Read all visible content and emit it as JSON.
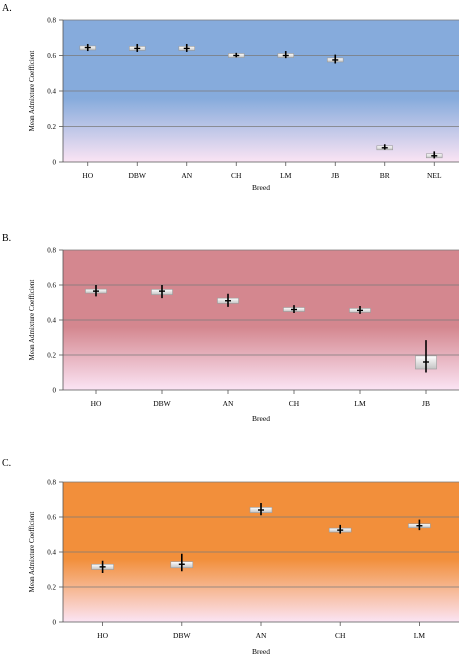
{
  "chart_data": [
    {
      "panel_label": "A.",
      "type": "box",
      "xlabel": "Breed",
      "ylabel": "Mean Admixture Coefficient",
      "ylim": [
        0,
        0.8
      ],
      "yticks": [
        "0",
        "0.2",
        "0.4",
        "0.6",
        "0.8"
      ],
      "grid": true,
      "background": {
        "top": "#86abdc",
        "bottom": "#fbe4f4"
      },
      "categories": [
        "HO",
        "DBW",
        "AN",
        "CH",
        "LM",
        "JB",
        "BR",
        "NEL"
      ],
      "series": [
        {
          "median": [
            0.645,
            0.64,
            0.64,
            0.6,
            0.6,
            0.575,
            0.08,
            0.035
          ],
          "q1": [
            0.635,
            0.63,
            0.63,
            0.595,
            0.59,
            0.565,
            0.075,
            0.03
          ],
          "q3": [
            0.65,
            0.65,
            0.65,
            0.605,
            0.61,
            0.585,
            0.085,
            0.04
          ],
          "whisker_low": [
            0.625,
            0.62,
            0.62,
            0.59,
            0.585,
            0.555,
            0.07,
            0.02
          ],
          "whisker_high": [
            0.665,
            0.665,
            0.665,
            0.615,
            0.625,
            0.605,
            0.1,
            0.06
          ]
        }
      ]
    },
    {
      "panel_label": "B.",
      "type": "box",
      "xlabel": "Breed",
      "ylabel": "Mean Admixture Coefficient",
      "ylim": [
        0,
        0.8
      ],
      "yticks": [
        "0",
        "0.2",
        "0.4",
        "0.6",
        "0.8"
      ],
      "grid": true,
      "background": {
        "top": "#d4878f",
        "bottom": "#fbe4f4"
      },
      "categories": [
        "HO",
        "DBW",
        "AN",
        "CH",
        "LM",
        "JB"
      ],
      "series": [
        {
          "median": [
            0.565,
            0.565,
            0.51,
            0.46,
            0.455,
            0.16
          ],
          "q1": [
            0.555,
            0.545,
            0.495,
            0.45,
            0.445,
            0.12
          ],
          "q3": [
            0.575,
            0.575,
            0.525,
            0.47,
            0.465,
            0.195
          ],
          "whisker_low": [
            0.535,
            0.525,
            0.475,
            0.44,
            0.435,
            0.1
          ],
          "whisker_high": [
            0.6,
            0.6,
            0.55,
            0.485,
            0.48,
            0.285
          ]
        }
      ]
    },
    {
      "panel_label": "C.",
      "type": "box",
      "xlabel": "Breed",
      "ylabel": "Mean Admixture Coefficient",
      "ylim": [
        0,
        0.8
      ],
      "yticks": [
        "0",
        "0.2",
        "0.4",
        "0.6",
        "0.8"
      ],
      "grid": true,
      "background": {
        "top": "#f28f3b",
        "bottom": "#fbe4f4"
      },
      "categories": [
        "HO",
        "DBW",
        "AN",
        "CH",
        "LM"
      ],
      "series": [
        {
          "median": [
            0.315,
            0.33,
            0.64,
            0.525,
            0.55
          ],
          "q1": [
            0.3,
            0.31,
            0.625,
            0.515,
            0.54
          ],
          "q3": [
            0.33,
            0.345,
            0.655,
            0.535,
            0.56
          ],
          "whisker_low": [
            0.28,
            0.29,
            0.61,
            0.505,
            0.525
          ],
          "whisker_high": [
            0.35,
            0.39,
            0.68,
            0.555,
            0.585
          ]
        }
      ]
    }
  ]
}
